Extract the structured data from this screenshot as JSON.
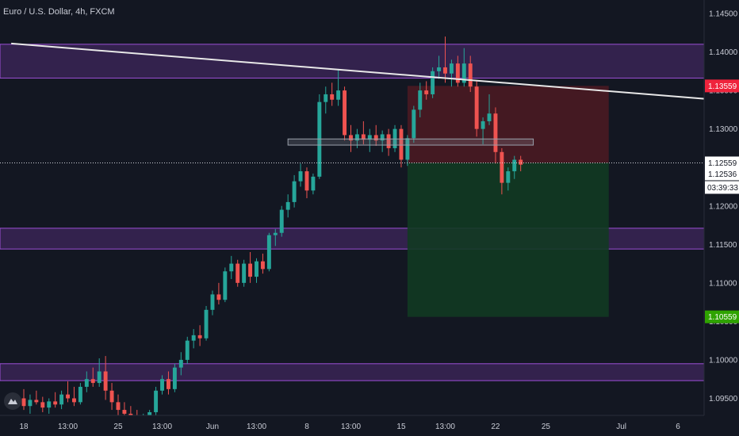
{
  "title": "Euro / U.S. Dollar, 4h, FXCM",
  "colors": {
    "background": "#131722",
    "bull": "#26a69a",
    "bear": "#ef5350",
    "zone_fill": "#3a2455",
    "zone_edge": "#9c4fd6",
    "trendline": "#e8e8e8",
    "stop_fill": "#4a1a22",
    "target_fill": "#123a22",
    "axis_text": "#c9ccd6"
  },
  "logo_icon": "tradingview-logo-icon",
  "chart_data": {
    "type": "candlestick",
    "y_axis": {
      "range": [
        1.0925,
        1.1465
      ],
      "ticks": [
        "1.14500",
        "1.14000",
        "1.13500",
        "1.13000",
        "1.12500",
        "1.12000",
        "1.11500",
        "1.11000",
        "1.10500",
        "1.10000",
        "1.09500"
      ]
    },
    "x_axis": {
      "range": [
        0,
        110
      ],
      "ticks": [
        {
          "label": "18",
          "x": 0
        },
        {
          "label": "13:00",
          "x": 7
        },
        {
          "label": "25",
          "x": 15
        },
        {
          "label": "13:00",
          "x": 22
        },
        {
          "label": "Jun",
          "x": 30
        },
        {
          "label": "13:00",
          "x": 37
        },
        {
          "label": "8",
          "x": 45
        },
        {
          "label": "13:00",
          "x": 52
        },
        {
          "label": "15",
          "x": 60
        },
        {
          "label": "13:00",
          "x": 67
        },
        {
          "label": "22",
          "x": 75
        },
        {
          "label": "25",
          "x": 83
        },
        {
          "label": "Jul",
          "x": 95
        },
        {
          "label": "6",
          "x": 104
        }
      ]
    },
    "price_labels": {
      "stop": "1.13559",
      "entry": "1.12559",
      "current": "1.12536",
      "countdown": "03:39:33",
      "target": "1.10559"
    },
    "levels": {
      "stop": 1.13559,
      "entry": 1.12559,
      "target": 1.10559
    },
    "zones": [
      {
        "low": 1.1366,
        "high": 1.141
      },
      {
        "low": 1.1144,
        "high": 1.1171
      },
      {
        "low": 1.0973,
        "high": 1.0995
      }
    ],
    "trendline": {
      "x1": -2,
      "y1": 1.1411,
      "x2": 110,
      "y2": 1.1338
    },
    "consolidation_box": {
      "x1": 42,
      "x2": 81,
      "low": 1.1279,
      "high": 1.1287
    },
    "position_box": {
      "x1": 61,
      "x2": 93
    },
    "candles": [
      [
        0,
        1.095,
        1.0962,
        1.0935,
        1.094
      ],
      [
        1,
        1.094,
        1.0955,
        1.093,
        1.0948
      ],
      [
        2,
        1.0948,
        1.096,
        1.0942,
        1.0945
      ],
      [
        3,
        1.0945,
        1.0952,
        1.0932,
        1.0938
      ],
      [
        4,
        1.0938,
        1.095,
        1.093,
        1.0946
      ],
      [
        5,
        1.0946,
        1.0958,
        1.0938,
        1.0942
      ],
      [
        6,
        1.0942,
        1.096,
        1.0936,
        1.0955
      ],
      [
        7,
        1.0955,
        1.0972,
        1.0945,
        1.095
      ],
      [
        8,
        1.095,
        1.0965,
        1.094,
        1.0945
      ],
      [
        9,
        1.0945,
        1.097,
        1.0942,
        1.0965
      ],
      [
        10,
        1.0965,
        1.0985,
        1.0958,
        1.0975
      ],
      [
        11,
        1.0975,
        1.099,
        1.0965,
        1.097
      ],
      [
        12,
        1.097,
        1.1002,
        1.0965,
        1.0985
      ],
      [
        13,
        1.0985,
        1.1005,
        1.0948,
        1.096
      ],
      [
        14,
        1.096,
        1.097,
        1.0935,
        1.0945
      ],
      [
        15,
        1.0945,
        1.0955,
        1.0925,
        1.0935
      ],
      [
        16,
        1.0935,
        1.0945,
        1.092,
        1.093
      ],
      [
        17,
        1.093,
        1.094,
        1.0918,
        1.0926
      ],
      [
        18,
        1.0926,
        1.0935,
        1.0915,
        1.0922
      ],
      [
        19,
        1.0922,
        1.093,
        1.0915,
        1.0925
      ],
      [
        20,
        1.0925,
        1.0935,
        1.0918,
        1.0932
      ],
      [
        21,
        1.0932,
        1.0965,
        1.0928,
        1.096
      ],
      [
        22,
        1.096,
        1.098,
        1.0955,
        1.0975
      ],
      [
        23,
        1.0975,
        1.0985,
        1.0955,
        1.0962
      ],
      [
        24,
        1.0962,
        1.0995,
        1.0958,
        1.099
      ],
      [
        25,
        1.099,
        1.101,
        1.098,
        1.1
      ],
      [
        26,
        1.1,
        1.103,
        1.0995,
        1.1025
      ],
      [
        27,
        1.1025,
        1.104,
        1.1015,
        1.1032
      ],
      [
        28,
        1.1032,
        1.1045,
        1.1018,
        1.1028
      ],
      [
        29,
        1.1028,
        1.107,
        1.1025,
        1.1065
      ],
      [
        30,
        1.1065,
        1.109,
        1.1058,
        1.1085
      ],
      [
        31,
        1.1085,
        1.11,
        1.1072,
        1.1078
      ],
      [
        32,
        1.1078,
        1.112,
        1.1075,
        1.1115
      ],
      [
        33,
        1.1115,
        1.1135,
        1.1105,
        1.1125
      ],
      [
        34,
        1.1125,
        1.113,
        1.1095,
        1.11
      ],
      [
        35,
        1.11,
        1.113,
        1.1095,
        1.1125
      ],
      [
        36,
        1.1125,
        1.114,
        1.11,
        1.1108
      ],
      [
        37,
        1.1108,
        1.1132,
        1.11,
        1.1128
      ],
      [
        38,
        1.1128,
        1.1138,
        1.1112,
        1.1118
      ],
      [
        39,
        1.1118,
        1.1165,
        1.1115,
        1.1162
      ],
      [
        40,
        1.1162,
        1.117,
        1.1148,
        1.1165
      ],
      [
        41,
        1.1165,
        1.12,
        1.116,
        1.1195
      ],
      [
        42,
        1.1195,
        1.1215,
        1.1185,
        1.1205
      ],
      [
        43,
        1.1205,
        1.124,
        1.1198,
        1.1232
      ],
      [
        44,
        1.1232,
        1.1255,
        1.1225,
        1.1245
      ],
      [
        45,
        1.1245,
        1.125,
        1.121,
        1.122
      ],
      [
        46,
        1.122,
        1.1242,
        1.1215,
        1.1238
      ],
      [
        47,
        1.1238,
        1.1345,
        1.1235,
        1.1335
      ],
      [
        48,
        1.1335,
        1.1355,
        1.132,
        1.1345
      ],
      [
        49,
        1.1345,
        1.136,
        1.133,
        1.1338
      ],
      [
        50,
        1.1338,
        1.1378,
        1.133,
        1.135
      ],
      [
        51,
        1.135,
        1.1355,
        1.1285,
        1.1292
      ],
      [
        52,
        1.1292,
        1.1305,
        1.127,
        1.1285
      ],
      [
        53,
        1.1285,
        1.13,
        1.1275,
        1.1293
      ],
      [
        54,
        1.1293,
        1.131,
        1.128,
        1.1286
      ],
      [
        55,
        1.1286,
        1.13,
        1.127,
        1.1292
      ],
      [
        56,
        1.1292,
        1.1305,
        1.1278,
        1.1285
      ],
      [
        57,
        1.1285,
        1.1298,
        1.127,
        1.1293
      ],
      [
        58,
        1.1293,
        1.13,
        1.1265,
        1.1275
      ],
      [
        59,
        1.1275,
        1.1305,
        1.127,
        1.13
      ],
      [
        60,
        1.13,
        1.1305,
        1.125,
        1.126
      ],
      [
        61,
        1.126,
        1.1292,
        1.1252,
        1.1288
      ],
      [
        62,
        1.1288,
        1.133,
        1.1282,
        1.1325
      ],
      [
        63,
        1.1325,
        1.136,
        1.1315,
        1.135
      ],
      [
        64,
        1.135,
        1.1362,
        1.1338,
        1.1345
      ],
      [
        65,
        1.1345,
        1.138,
        1.134,
        1.1375
      ],
      [
        66,
        1.1375,
        1.1395,
        1.1365,
        1.138
      ],
      [
        67,
        1.138,
        1.142,
        1.136,
        1.1372
      ],
      [
        68,
        1.1372,
        1.139,
        1.1355,
        1.1385
      ],
      [
        69,
        1.1385,
        1.1395,
        1.1355,
        1.136
      ],
      [
        70,
        1.136,
        1.1405,
        1.1355,
        1.1385
      ],
      [
        71,
        1.1385,
        1.1395,
        1.1348,
        1.1355
      ],
      [
        72,
        1.1355,
        1.1362,
        1.129,
        1.13
      ],
      [
        73,
        1.13,
        1.1315,
        1.128,
        1.131
      ],
      [
        74,
        1.131,
        1.1345,
        1.1305,
        1.132
      ],
      [
        75,
        1.132,
        1.1328,
        1.1255,
        1.127
      ],
      [
        76,
        1.127,
        1.1275,
        1.1215,
        1.123
      ],
      [
        77,
        1.123,
        1.125,
        1.122,
        1.1245
      ],
      [
        78,
        1.1245,
        1.1265,
        1.1235,
        1.126
      ],
      [
        79,
        1.126,
        1.1265,
        1.1245,
        1.12536
      ]
    ]
  }
}
